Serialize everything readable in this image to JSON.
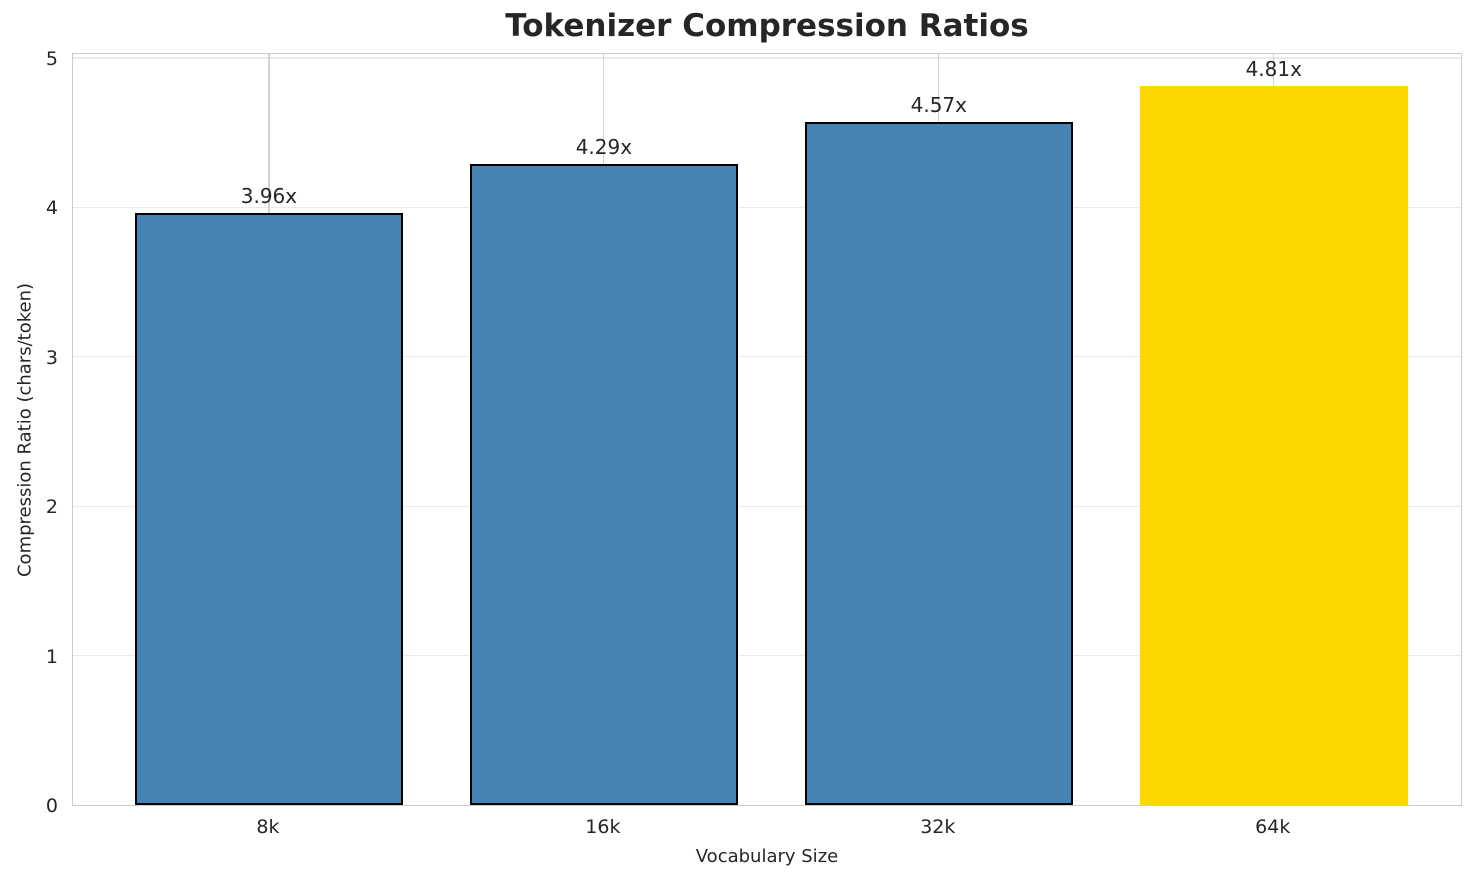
{
  "chart_data": {
    "type": "bar",
    "title": "Tokenizer Compression Ratios",
    "xlabel": "Vocabulary Size",
    "ylabel": "Compression Ratio (chars/token)",
    "categories": [
      "8k",
      "16k",
      "32k",
      "64k"
    ],
    "values": [
      3.96,
      4.29,
      4.57,
      4.81
    ],
    "bar_labels": [
      "3.96x",
      "4.29x",
      "4.57x",
      "4.81x"
    ],
    "yticks": [
      0,
      1,
      2,
      3,
      4,
      5
    ],
    "ylim": [
      0,
      5.04
    ],
    "xlim": [
      -0.585,
      3.565
    ],
    "bar_width_units": 0.8,
    "grid": true,
    "legend": "none",
    "bar_colors": [
      "#4682B4",
      "#4682B4",
      "#4682B4",
      "#FFD700"
    ],
    "bar_edge_colors": [
      "#000000",
      "#000000",
      "#000000",
      "none"
    ]
  },
  "colors": {
    "accent_blue": "#4682B4",
    "highlight_gold": "#FFD700",
    "bar_edge": "#000000",
    "grid_horizontal": "#eaeaea",
    "grid_vertical": "#d2d2d2",
    "spine": "#cccccc",
    "text": "#262626"
  }
}
